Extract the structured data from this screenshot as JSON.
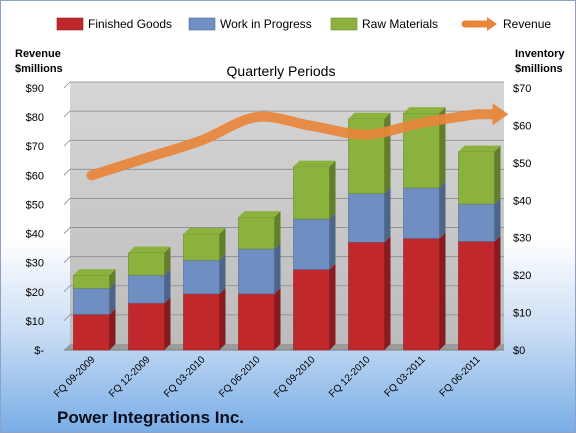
{
  "company": "Power Integrations Inc.",
  "chart_data": {
    "type": "bar",
    "stacked": true,
    "title": "Quarterly Periods",
    "categories": [
      "FQ 09-2009",
      "FQ 12-2009",
      "FQ 03-2010",
      "FQ 06-2010",
      "FQ 09-2010",
      "FQ 12-2010",
      "FQ 03-2011",
      "FQ 06-2011"
    ],
    "y_left": {
      "label_lines": [
        "Revenue",
        "$millions"
      ],
      "range": [
        0,
        90
      ],
      "ticks": [
        0,
        10,
        20,
        30,
        40,
        50,
        60,
        70,
        80,
        90
      ],
      "tick_labels": [
        "$-",
        "$10",
        "$20",
        "$30",
        "$40",
        "$50",
        "$60",
        "$70",
        "$80",
        "$90"
      ]
    },
    "y_right": {
      "label_lines": [
        "Inventory",
        "$millions"
      ],
      "range": [
        0,
        70
      ],
      "ticks": [
        0,
        10,
        20,
        30,
        40,
        50,
        60,
        70
      ],
      "tick_labels": [
        "$0",
        "$10",
        "$20",
        "$30",
        "$40",
        "$50",
        "$60",
        "$70"
      ]
    },
    "series": [
      {
        "name": "Finished Goods",
        "axis": "right",
        "color": "#c0282c",
        "values": [
          9.5,
          12.5,
          15,
          15,
          21.5,
          28.8,
          29.8,
          29
        ]
      },
      {
        "name": "Work in Progress",
        "axis": "right",
        "color": "#6f8fc2",
        "values": [
          7,
          7.5,
          9,
          12,
          13.5,
          13,
          13.5,
          10
        ]
      },
      {
        "name": "Raw Materials",
        "axis": "right",
        "color": "#8cb23e",
        "values": [
          3.5,
          6,
          7,
          8.5,
          14,
          20,
          20,
          14
        ]
      },
      {
        "name": "Revenue",
        "axis": "left",
        "type": "line",
        "color": "#e8853a",
        "values": [
          60,
          66,
          72,
          80,
          77,
          74,
          78,
          81
        ]
      }
    ],
    "legend_position": "top",
    "grid": true
  }
}
